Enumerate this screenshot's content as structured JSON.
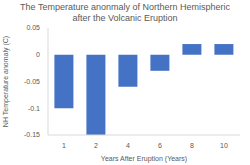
{
  "chart_data": {
    "type": "bar",
    "title": "The Temperature anonmaly of Northern Hemispheric after the Volcanic Eruption",
    "x_label": "Years After Eruption (Years)",
    "y_label": "NH Temperature anomaly (C)",
    "categories": [
      "1",
      "2",
      "4",
      "6",
      "8",
      "10"
    ],
    "values": [
      -0.1,
      -0.15,
      -0.06,
      -0.03,
      0.02,
      0.02
    ],
    "color": "#4472c4",
    "ylim": [
      -0.15,
      0.05
    ],
    "yticks": [
      -0.15,
      -0.1,
      -0.05,
      0,
      0.05
    ],
    "grid": false
  }
}
